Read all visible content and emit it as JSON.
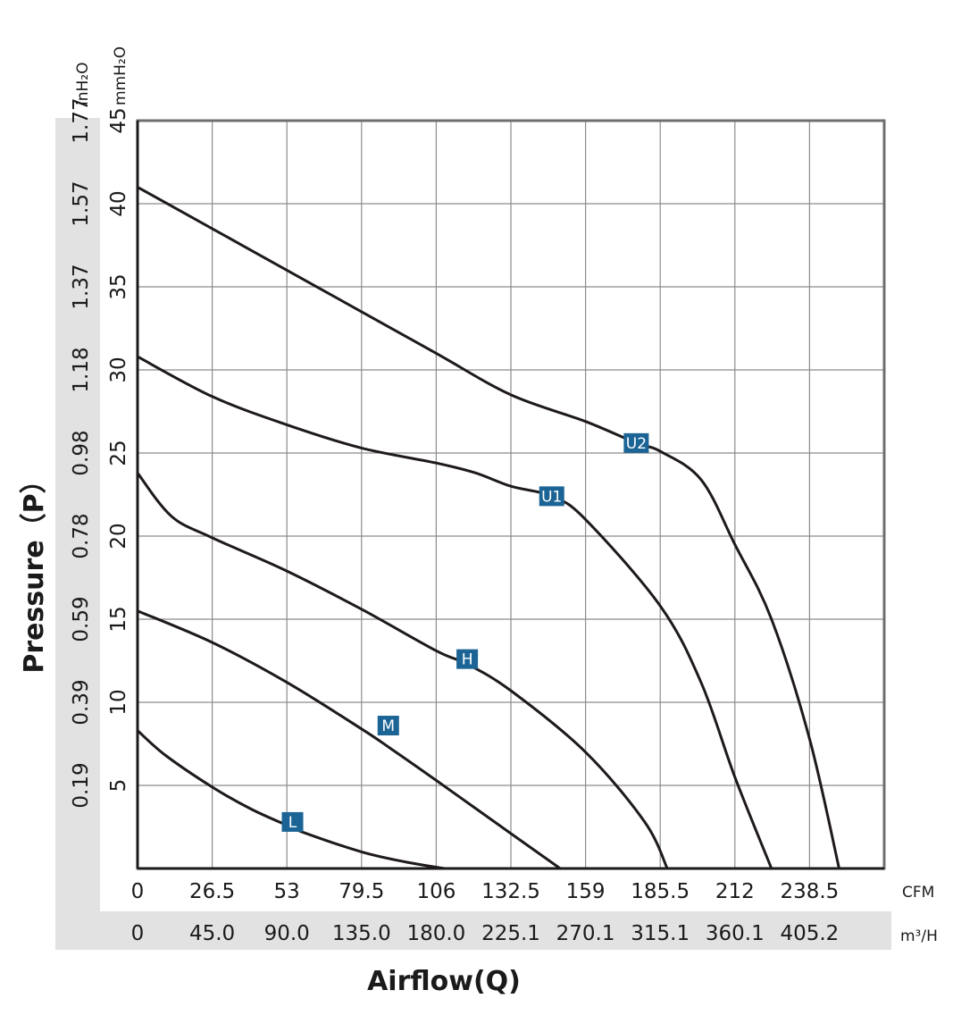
{
  "chart_data": {
    "type": "line",
    "ylabel": "Pressure（P）",
    "xlabel": "Airflow(Q)",
    "x_unit": "CFM",
    "x2_unit": "m³/H",
    "y_unit": "mmH₂O",
    "y2_unit": "inH₂O",
    "xlim": [
      0,
      265
    ],
    "ylim": [
      0,
      45
    ],
    "x_ticks": [
      "0",
      "26.5",
      "53",
      "79.5",
      "106",
      "132.5",
      "159",
      "185.5",
      "212",
      "238.5"
    ],
    "x2_ticks": [
      "0",
      "45.0",
      "90.0",
      "135.0",
      "180.0",
      "225.1",
      "270.1",
      "315.1",
      "360.1",
      "405.2"
    ],
    "y_ticks": [
      "5",
      "10",
      "15",
      "20",
      "25",
      "30",
      "35",
      "40",
      "45"
    ],
    "y2_ticks": [
      "0.19",
      "0.39",
      "0.59",
      "0.78",
      "0.98",
      "1.18",
      "1.37",
      "1.57",
      "1.77"
    ],
    "grid": true,
    "label_color": "#1b6495",
    "series": [
      {
        "name": "L",
        "label_x": 55,
        "label_y": 2.8,
        "x": [
          0,
          10,
          26.5,
          40,
          53,
          60,
          79.5,
          95,
          109
        ],
        "y": [
          8.3,
          6.8,
          4.9,
          3.6,
          2.6,
          2.1,
          1.0,
          0.4,
          0
        ]
      },
      {
        "name": "M",
        "label_x": 89,
        "label_y": 8.6,
        "x": [
          0,
          26.5,
          53,
          79.5,
          90,
          106,
          132.5,
          150
        ],
        "y": [
          15.5,
          13.6,
          11.2,
          8.4,
          7.2,
          5.3,
          2.1,
          0
        ]
      },
      {
        "name": "H",
        "label_x": 117,
        "label_y": 12.6,
        "x": [
          0,
          12,
          26.5,
          53,
          79.5,
          106,
          117,
          132.5,
          159,
          180,
          188
        ],
        "y": [
          23.8,
          21.2,
          19.9,
          17.9,
          15.6,
          13.1,
          12.3,
          10.7,
          7.0,
          2.8,
          0
        ]
      },
      {
        "name": "U1",
        "label_x": 147,
        "label_y": 22.4,
        "x": [
          0,
          26.5,
          53,
          79.5,
          106,
          120,
          132.5,
          147,
          159,
          185.5,
          200,
          212,
          225
        ],
        "y": [
          30.8,
          28.4,
          26.7,
          25.3,
          24.4,
          23.8,
          23.0,
          22.4,
          21.0,
          15.8,
          11.2,
          5.5,
          0
        ]
      },
      {
        "name": "U2",
        "label_x": 177,
        "label_y": 25.6,
        "x": [
          0,
          26.5,
          53,
          79.5,
          106,
          132.5,
          159,
          177,
          185.5,
          200,
          212,
          225,
          238.5,
          249
        ],
        "y": [
          41.0,
          38.5,
          36.0,
          33.5,
          31.0,
          28.5,
          26.9,
          25.6,
          25.1,
          23.4,
          19.5,
          15.0,
          7.8,
          0
        ]
      }
    ]
  }
}
